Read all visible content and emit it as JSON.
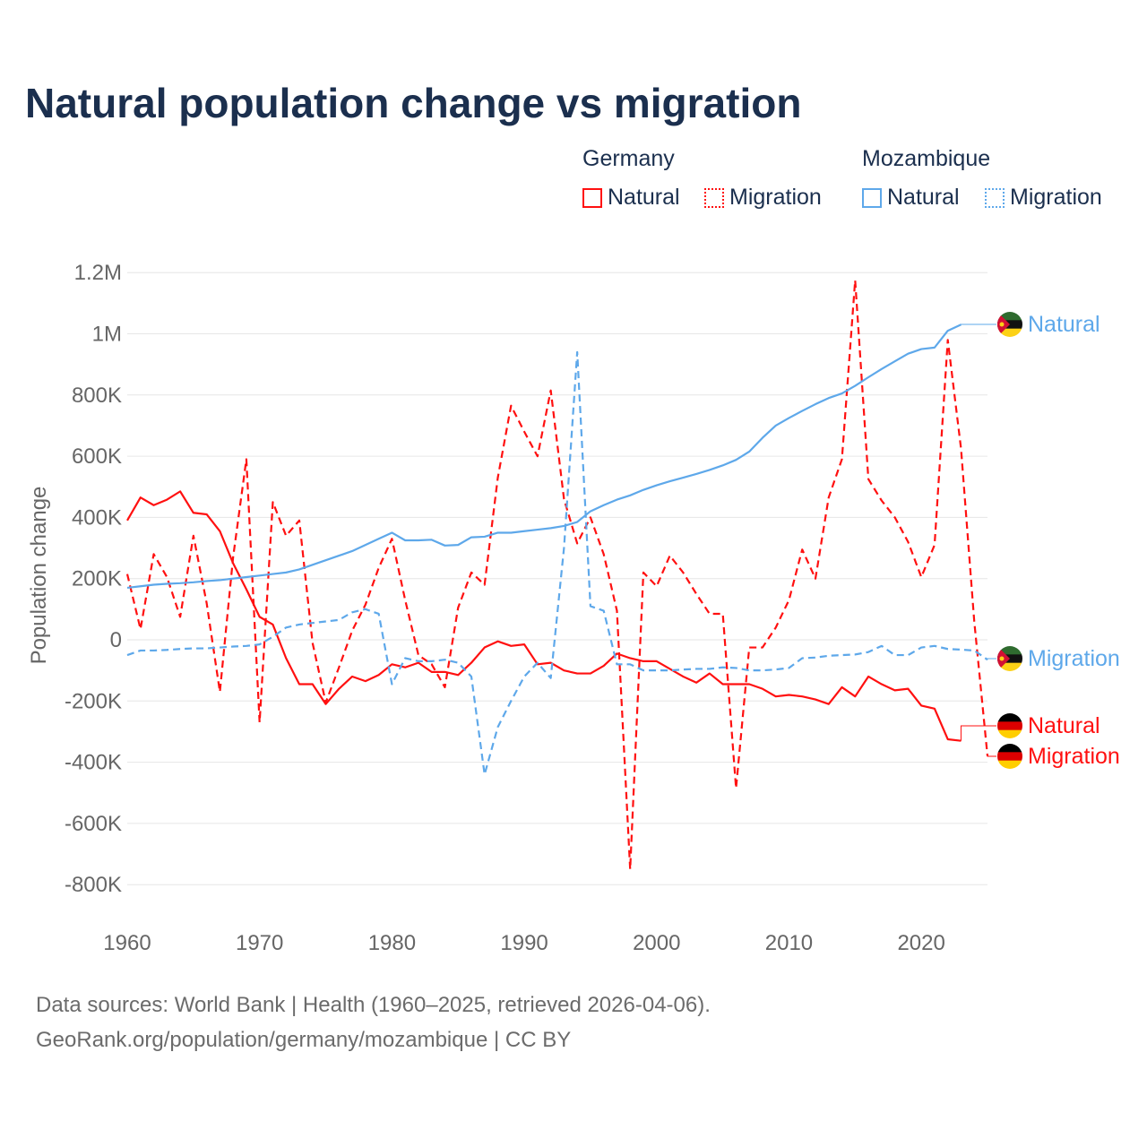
{
  "title": "Natural population change vs migration",
  "legend": {
    "groups": [
      {
        "name": "Germany",
        "items": [
          {
            "label": "Natural",
            "style": "solid",
            "color": "#ff1010"
          },
          {
            "label": "Migration",
            "style": "dotted",
            "color": "#ff1010"
          }
        ]
      },
      {
        "name": "Mozambique",
        "items": [
          {
            "label": "Natural",
            "style": "solid",
            "color": "#5ea8ea"
          },
          {
            "label": "Migration",
            "style": "dotted",
            "color": "#5ea8ea"
          }
        ]
      }
    ]
  },
  "footer": {
    "line1": "Data sources: World Bank | Health (1960–2025, retrieved 2026-04-06).",
    "line2": "GeoRank.org/population/germany/mozambique | CC BY"
  },
  "chart_data": {
    "type": "line",
    "title": "Natural population change vs migration",
    "xlabel": "",
    "ylabel": "Population change",
    "xlim": [
      1960,
      2025
    ],
    "ylim": [
      -800000,
      1200000
    ],
    "x_ticks": [
      1960,
      1970,
      1980,
      1990,
      2000,
      2010,
      2020
    ],
    "x_tick_labels": [
      "1960",
      "1970",
      "1980",
      "1990",
      "2000",
      "2010",
      "2020"
    ],
    "y_ticks": [
      1200000,
      1000000,
      800000,
      600000,
      400000,
      200000,
      0,
      -200000,
      -400000,
      -600000,
      -800000
    ],
    "y_tick_labels": [
      "1.2M",
      "1M",
      "800K",
      "600K",
      "400K",
      "200K",
      "0",
      "-200K",
      "-400K",
      "-600K",
      "-800K"
    ],
    "grid": true,
    "legend_placement": "top-right",
    "series": [
      {
        "name": "Germany Natural",
        "end_label": "Natural",
        "color": "#ff1010",
        "dash": false,
        "flag": "germany",
        "start_year": 1960,
        "label_value": -280000,
        "values_k": [
          390,
          465,
          440,
          458,
          485,
          415,
          410,
          355,
          250,
          165,
          75,
          50,
          -60,
          -145,
          -145,
          -210,
          -160,
          -120,
          -135,
          -115,
          -80,
          -90,
          -75,
          -105,
          -105,
          -115,
          -75,
          -25,
          -5,
          -20,
          -15,
          -80,
          -75,
          -100,
          -110,
          -110,
          -85,
          -45,
          -60,
          -70,
          -70,
          -95,
          -120,
          -140,
          -110,
          -145,
          -145,
          -145,
          -160,
          -185,
          -180,
          -185,
          -195,
          -210,
          -155,
          -185,
          -120,
          -145,
          -165,
          -160,
          -215,
          -225,
          -325,
          -330
        ]
      },
      {
        "name": "Germany Migration",
        "end_label": "Migration",
        "color": "#ff1010",
        "dash": true,
        "flag": "germany",
        "start_year": 1960,
        "label_value": -380000,
        "values_k": [
          215,
          35,
          280,
          205,
          75,
          340,
          120,
          -170,
          270,
          590,
          -270,
          450,
          340,
          390,
          -10,
          -205,
          -90,
          30,
          115,
          235,
          330,
          130,
          -50,
          -80,
          -155,
          105,
          220,
          180,
          530,
          765,
          680,
          600,
          815,
          460,
          315,
          400,
          280,
          95,
          -750,
          220,
          175,
          275,
          220,
          150,
          85,
          85,
          -485,
          -25,
          -25,
          40,
          130,
          295,
          200,
          465,
          590,
          1175,
          525,
          455,
          400,
          320,
          205,
          310,
          980,
          625,
          60,
          -380
        ]
      },
      {
        "name": "Mozambique Natural",
        "end_label": "Natural",
        "color": "#5ea8ea",
        "dash": false,
        "flag": "mozambique",
        "start_year": 1960,
        "label_value": 1030000,
        "values_k": [
          170,
          175,
          180,
          183,
          185,
          188,
          192,
          195,
          200,
          205,
          210,
          215,
          220,
          230,
          245,
          260,
          275,
          290,
          310,
          330,
          350,
          325,
          325,
          327,
          308,
          310,
          335,
          337,
          350,
          350,
          355,
          360,
          365,
          372,
          385,
          420,
          440,
          458,
          472,
          490,
          505,
          518,
          530,
          542,
          555,
          570,
          588,
          615,
          660,
          700,
          725,
          748,
          770,
          790,
          805,
          830,
          858,
          885,
          910,
          935,
          950,
          955,
          1010,
          1030
        ]
      },
      {
        "name": "Mozambique Migration",
        "end_label": "Migration",
        "color": "#5ea8ea",
        "dash": true,
        "flag": "mozambique",
        "start_year": 1960,
        "label_value": -65000,
        "values_k": [
          -50,
          -35,
          -35,
          -33,
          -30,
          -28,
          -28,
          -25,
          -22,
          -20,
          -15,
          10,
          40,
          50,
          55,
          60,
          65,
          90,
          100,
          85,
          -145,
          -60,
          -70,
          -70,
          -65,
          -75,
          -120,
          -440,
          -285,
          -200,
          -120,
          -75,
          -125,
          300,
          940,
          110,
          95,
          -80,
          -80,
          -100,
          -100,
          -100,
          -97,
          -95,
          -95,
          -90,
          -92,
          -100,
          -100,
          -97,
          -92,
          -60,
          -58,
          -52,
          -50,
          -48,
          -40,
          -20,
          -50,
          -50,
          -25,
          -20,
          -30,
          -32,
          -35,
          -65
        ]
      }
    ]
  }
}
